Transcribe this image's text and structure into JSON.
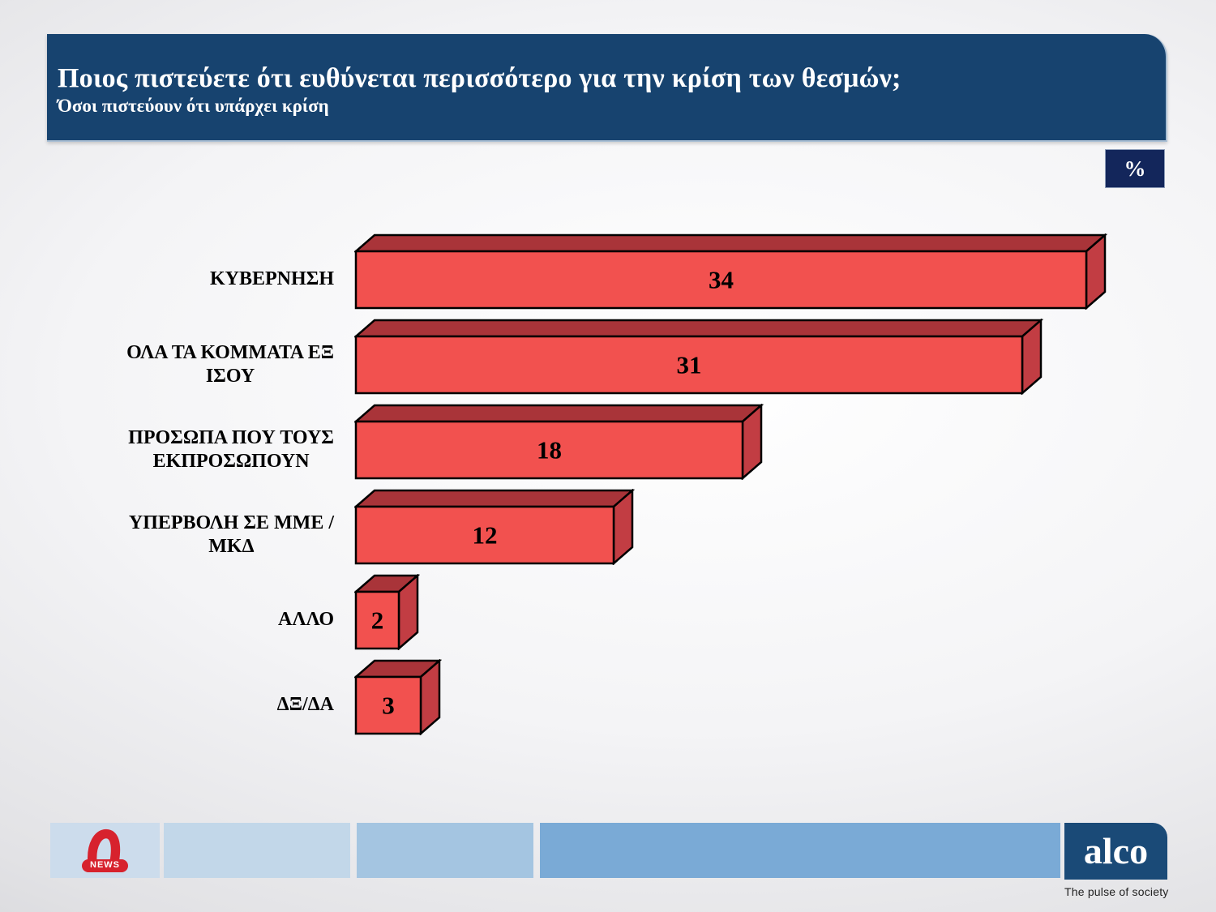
{
  "header": {
    "title": "Ποιος πιστεύετε ότι ευθύνεται περισσότερο για την κρίση των θεσμών;",
    "subtitle": "Όσοι πιστεύουν ότι υπάρχει κρίση"
  },
  "unit_badge": "%",
  "chart_data": {
    "type": "bar",
    "orientation": "horizontal",
    "title": "Ποιος πιστεύετε ότι ευθύνεται περισσότερο για την κρίση των θεσμών;",
    "subtitle": "Όσοι πιστεύουν ότι υπάρχει κρίση",
    "unit": "%",
    "categories": [
      "ΚΥΒΕΡΝΗΣΗ",
      "ΟΛΑ ΤΑ ΚΟΜΜΑΤΑ ΕΞ ΙΣΟΥ",
      "ΠΡΟΣΩΠΑ ΠΟΥ ΤΟΥΣ ΕΚΠΡΟΣΩΠΟΥΝ",
      "ΥΠΕΡΒΟΛΗ ΣΕ ΜΜΕ / ΜΚΔ",
      "ΑΛΛΟ",
      "ΔΞ/ΔΑ"
    ],
    "categories_lines": [
      [
        "ΚΥΒΕΡΝΗΣΗ"
      ],
      [
        "ΟΛΑ ΤΑ ΚΟΜΜΑΤΑ ΕΞ",
        "ΙΣΟΥ"
      ],
      [
        "ΠΡΟΣΩΠΑ ΠΟΥ ΤΟΥΣ",
        "ΕΚΠΡΟΣΩΠΟΥΝ"
      ],
      [
        "ΥΠΕΡΒΟΛΗ ΣΕ ΜΜΕ /",
        "ΜΚΔ"
      ],
      [
        "ΑΛΛΟ"
      ],
      [
        "ΔΞ/ΔΑ"
      ]
    ],
    "values": [
      34,
      31,
      18,
      12,
      2,
      3
    ],
    "xlim": [
      0,
      38
    ],
    "grid": false,
    "bar_style_3d": true,
    "colors": {
      "front": "#F2514F",
      "top": "#A93439",
      "side": "#C23D43",
      "outline": "#000000",
      "value_text": "#000000"
    }
  },
  "footer": {
    "alpha_news_label": "NEWS",
    "alco_text": "alco",
    "alco_tagline": "The pulse of society"
  }
}
